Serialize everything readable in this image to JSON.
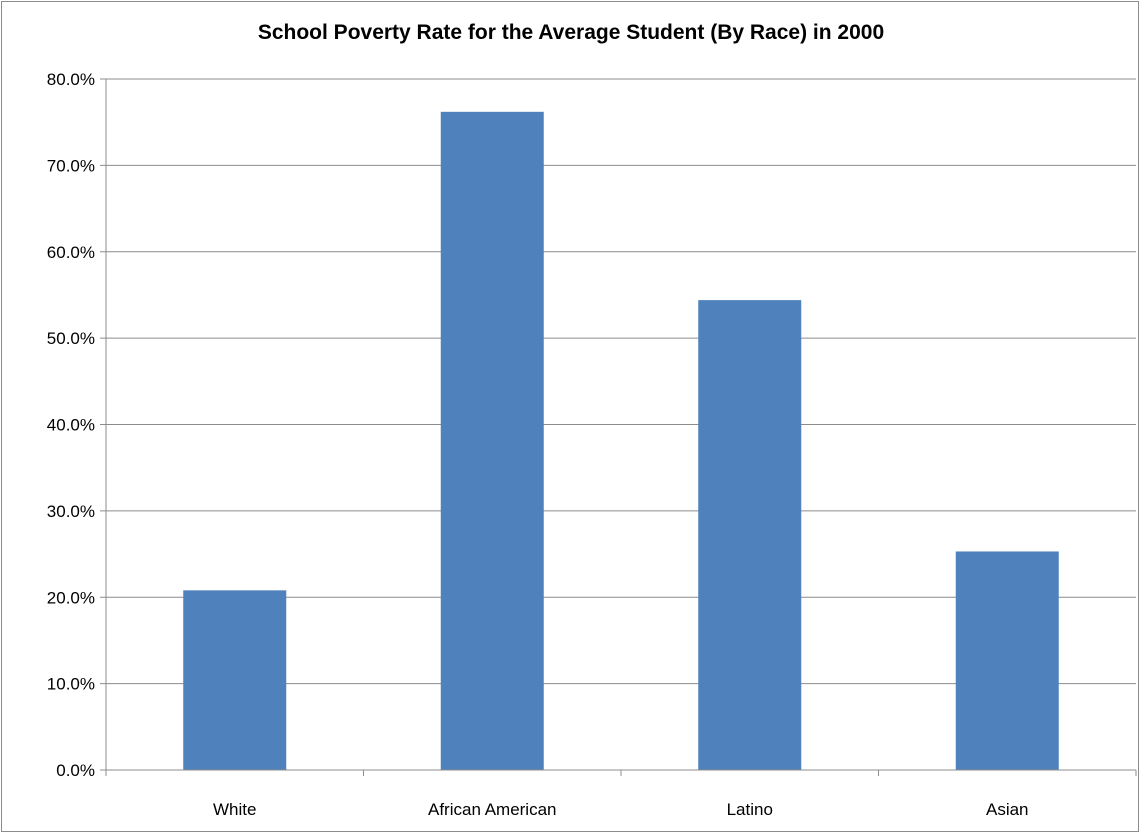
{
  "chart_data": {
    "type": "bar",
    "title": "School Poverty Rate for the Average Student (By Race) in 2000",
    "xlabel": "",
    "ylabel": "",
    "categories": [
      "White",
      "African American",
      "Latino",
      "Asian"
    ],
    "values": [
      20.8,
      76.2,
      54.4,
      25.3
    ],
    "ylim": [
      0,
      80
    ],
    "yticks": [
      "0.0%",
      "10.0%",
      "20.0%",
      "30.0%",
      "40.0%",
      "50.0%",
      "60.0%",
      "70.0%",
      "80.0%"
    ],
    "grid": true,
    "legend": "none",
    "bar_color": "#4f81bd"
  }
}
